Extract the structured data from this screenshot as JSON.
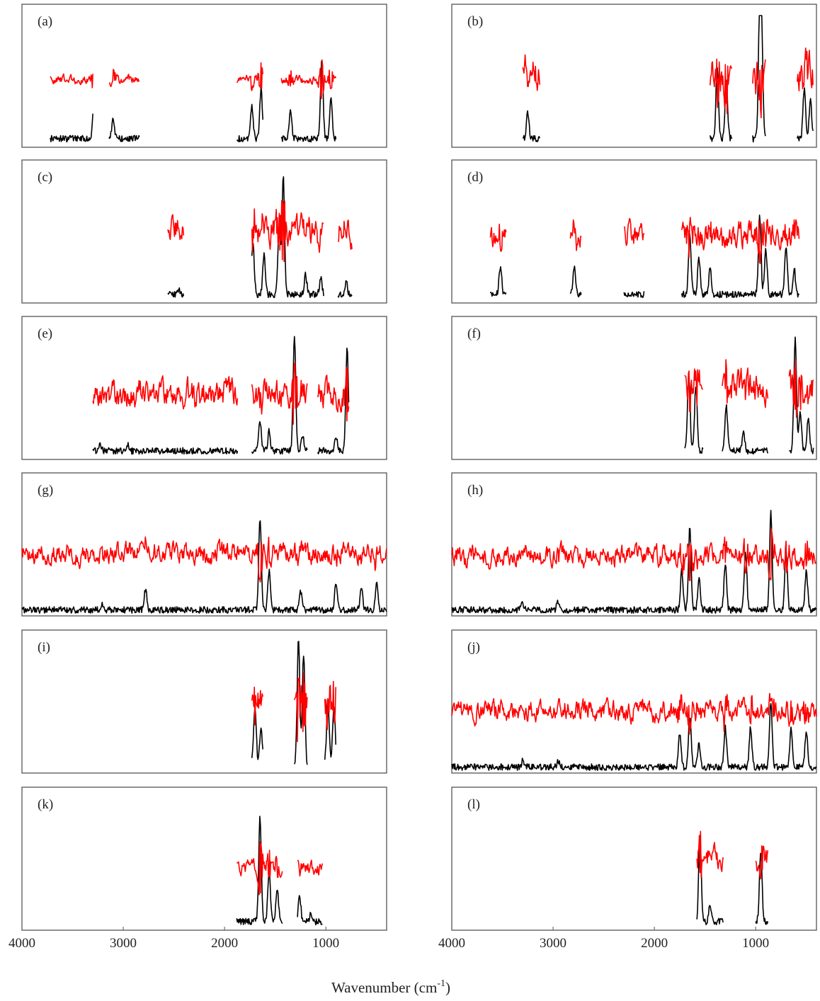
{
  "chart_data": {
    "type": "line",
    "xlabel_main": "Wavenumber (cm",
    "xlabel_sup": "-1",
    "xlabel_close": ")",
    "x_ticks": [
      4000,
      3000,
      2000,
      1000
    ],
    "x_tick_labels": [
      "4000",
      "3000",
      "2000",
      "1000"
    ],
    "xlim": [
      4000,
      400
    ],
    "x_reversed": true,
    "colors": {
      "black": "#000000",
      "red": "#ff0000",
      "frame": "#555555"
    },
    "panels": [
      {
        "label": "(a)",
        "bands": [
          [
            3720,
            3300
          ],
          [
            3140,
            2840
          ],
          [
            1880,
            1620
          ],
          [
            1440,
            900
          ]
        ],
        "peaks": [
          [
            3290,
            0.28
          ],
          [
            3100,
            0.15
          ],
          [
            1730,
            0.25
          ],
          [
            1640,
            0.38
          ],
          [
            1350,
            0.22
          ],
          [
            1040,
            0.6
          ],
          [
            950,
            0.3
          ]
        ],
        "red_level": 0.52,
        "red_amp": 0.05
      },
      {
        "label": "(b)",
        "bands": [
          [
            3300,
            3130
          ],
          [
            1450,
            1230
          ],
          [
            1030,
            900
          ],
          [
            590,
            430
          ]
        ],
        "peaks": [
          [
            3250,
            0.2
          ],
          [
            1380,
            0.55
          ],
          [
            1290,
            0.45
          ],
          [
            960,
            1.0
          ],
          [
            940,
            0.7
          ],
          [
            520,
            0.4
          ],
          [
            460,
            0.3
          ]
        ],
        "red_level": 0.55,
        "red_amp": 0.22
      },
      {
        "label": "(c)",
        "bands": [
          [
            2560,
            2400
          ],
          [
            1730,
            1020
          ],
          [
            880,
            740
          ]
        ],
        "peaks": [
          [
            2450,
            0.03
          ],
          [
            1720,
            0.4
          ],
          [
            1610,
            0.3
          ],
          [
            1420,
            0.9
          ],
          [
            1460,
            0.55
          ],
          [
            1200,
            0.15
          ],
          [
            1050,
            0.12
          ],
          [
            800,
            0.1
          ]
        ],
        "red_level": 0.55,
        "red_amp": 0.18
      },
      {
        "label": "(d)",
        "bands": [
          [
            3620,
            3460
          ],
          [
            2830,
            2720
          ],
          [
            2300,
            2100
          ],
          [
            1730,
            570
          ]
        ],
        "peaks": [
          [
            3520,
            0.22
          ],
          [
            2790,
            0.22
          ],
          [
            1650,
            0.45
          ],
          [
            1560,
            0.28
          ],
          [
            1450,
            0.2
          ],
          [
            960,
            0.6
          ],
          [
            900,
            0.35
          ],
          [
            700,
            0.38
          ],
          [
            620,
            0.2
          ]
        ],
        "red_level": 0.52,
        "red_amp": 0.14
      },
      {
        "label": "(e)",
        "bands": [
          [
            3300,
            1870
          ],
          [
            1730,
            1180
          ],
          [
            1080,
            770
          ]
        ],
        "peaks": [
          [
            3230,
            0.05
          ],
          [
            2960,
            0.05
          ],
          [
            1650,
            0.22
          ],
          [
            1560,
            0.15
          ],
          [
            1310,
            0.9
          ],
          [
            1230,
            0.12
          ],
          [
            900,
            0.1
          ],
          [
            790,
            0.8
          ]
        ],
        "red_level": 0.5,
        "red_amp": 0.16
      },
      {
        "label": "(f)",
        "bands": [
          [
            1700,
            1520
          ],
          [
            1330,
            880
          ],
          [
            670,
            430
          ]
        ],
        "peaks": [
          [
            1660,
            0.6
          ],
          [
            1590,
            0.5
          ],
          [
            1290,
            0.35
          ],
          [
            1120,
            0.15
          ],
          [
            610,
            0.85
          ],
          [
            560,
            0.3
          ],
          [
            480,
            0.25
          ]
        ],
        "red_level": 0.55,
        "red_amp": 0.18
      },
      {
        "label": "(g)",
        "bands": [
          [
            4000,
            400
          ]
        ],
        "peaks": [
          [
            3200,
            0.05
          ],
          [
            2780,
            0.16
          ],
          [
            1650,
            0.7
          ],
          [
            1560,
            0.3
          ],
          [
            1250,
            0.15
          ],
          [
            900,
            0.22
          ],
          [
            650,
            0.18
          ],
          [
            500,
            0.2
          ]
        ],
        "red_level": 0.48,
        "red_amp": 0.12
      },
      {
        "label": "(h)",
        "bands": [
          [
            4000,
            400
          ]
        ],
        "peaks": [
          [
            3300,
            0.05
          ],
          [
            2950,
            0.06
          ],
          [
            1730,
            0.3
          ],
          [
            1650,
            0.65
          ],
          [
            1560,
            0.25
          ],
          [
            1300,
            0.35
          ],
          [
            1100,
            0.45
          ],
          [
            850,
            0.75
          ],
          [
            700,
            0.45
          ],
          [
            500,
            0.3
          ]
        ],
        "red_level": 0.46,
        "red_amp": 0.12
      },
      {
        "label": "(i)",
        "bands": [
          [
            1730,
            1620
          ],
          [
            1310,
            1180
          ],
          [
            1010,
            900
          ]
        ],
        "peaks": [
          [
            1700,
            0.45
          ],
          [
            1640,
            0.3
          ],
          [
            1270,
            1.0
          ],
          [
            1220,
            0.85
          ],
          [
            980,
            0.5
          ],
          [
            920,
            0.45
          ]
        ],
        "red_level": 0.55,
        "red_amp": 0.16
      },
      {
        "label": "(j)",
        "bands": [
          [
            4000,
            400
          ]
        ],
        "peaks": [
          [
            3300,
            0.05
          ],
          [
            2950,
            0.04
          ],
          [
            1750,
            0.25
          ],
          [
            1650,
            0.4
          ],
          [
            1560,
            0.18
          ],
          [
            1300,
            0.3
          ],
          [
            1050,
            0.3
          ],
          [
            850,
            0.5
          ],
          [
            650,
            0.3
          ],
          [
            500,
            0.28
          ]
        ],
        "red_level": 0.48,
        "red_amp": 0.12
      },
      {
        "label": "(k)",
        "bands": [
          [
            1880,
            1430
          ],
          [
            1280,
            1030
          ]
        ],
        "peaks": [
          [
            1650,
            0.8
          ],
          [
            1560,
            0.4
          ],
          [
            1480,
            0.25
          ],
          [
            1260,
            0.2
          ],
          [
            1150,
            0.05
          ]
        ],
        "red_level": 0.48,
        "red_amp": 0.08
      },
      {
        "label": "(l)",
        "bands": [
          [
            1580,
            1320
          ],
          [
            1000,
            880
          ]
        ],
        "peaks": [
          [
            1550,
            0.65
          ],
          [
            1450,
            0.12
          ],
          [
            950,
            0.55
          ]
        ],
        "red_level": 0.55,
        "red_amp": 0.14
      }
    ]
  }
}
